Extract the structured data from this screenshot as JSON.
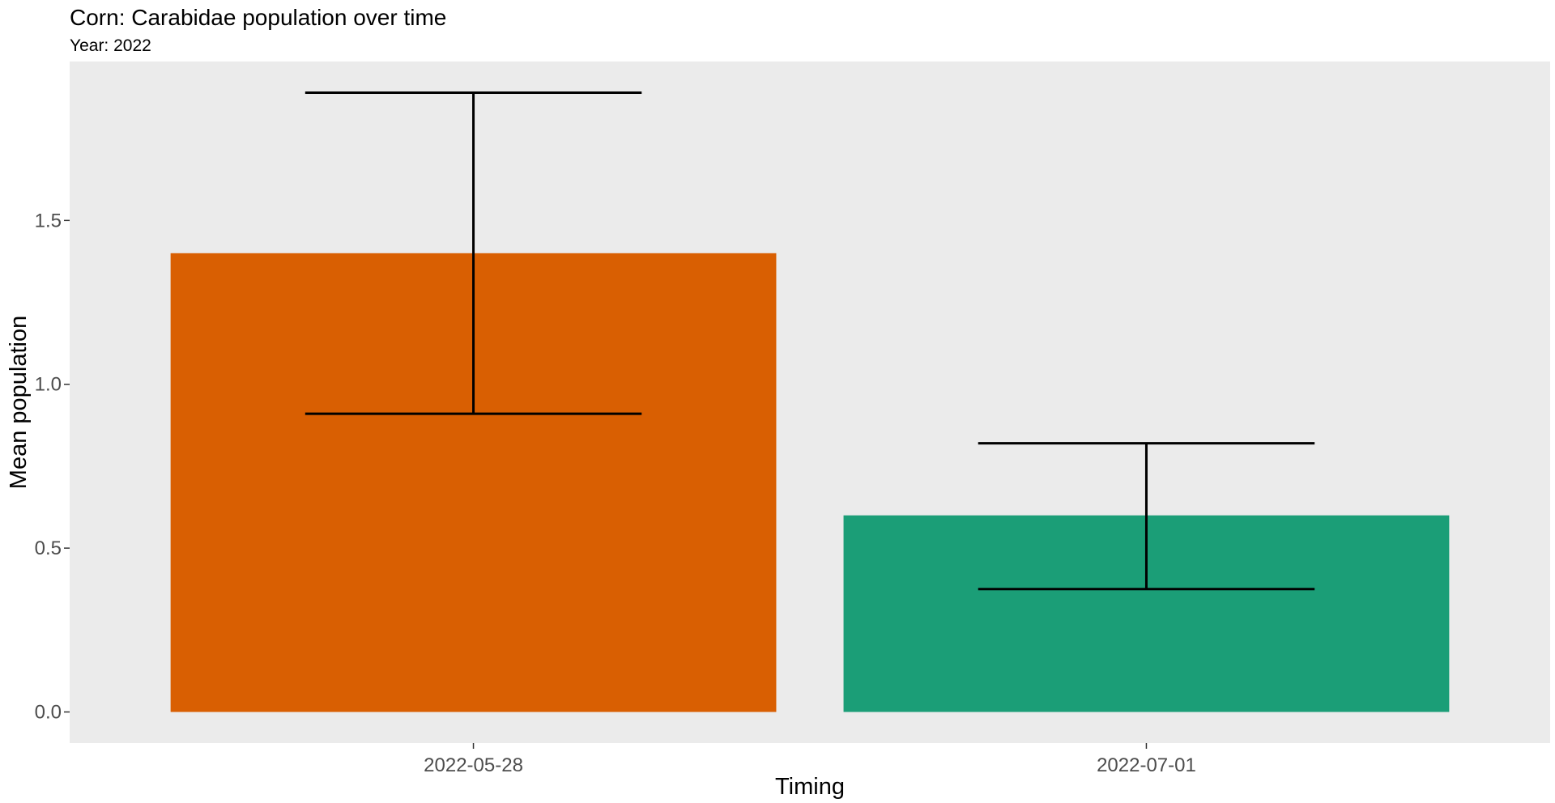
{
  "chart_data": {
    "type": "bar",
    "title": "Corn: Carabidae population over time",
    "subtitle": "Year: 2022",
    "xlabel": "Timing",
    "ylabel": "Mean population",
    "categories": [
      "2022-05-28",
      "2022-07-01"
    ],
    "values": [
      1.4,
      0.6
    ],
    "error_bars": [
      {
        "lower": 0.91,
        "upper": 1.89
      },
      {
        "lower": 0.375,
        "upper": 0.82
      }
    ],
    "bar_colors": [
      "#D95F02",
      "#1B9E77"
    ],
    "ylim": [
      -0.095,
      1.985
    ],
    "y_ticks": [
      0.0,
      0.5,
      1.0,
      1.5
    ],
    "y_tick_labels": [
      "0.0",
      "0.5",
      "1.0",
      "1.5"
    ],
    "grid": false,
    "legend": "none",
    "panel_background": "#EBEBEB",
    "error_bar_color": "#000000"
  }
}
